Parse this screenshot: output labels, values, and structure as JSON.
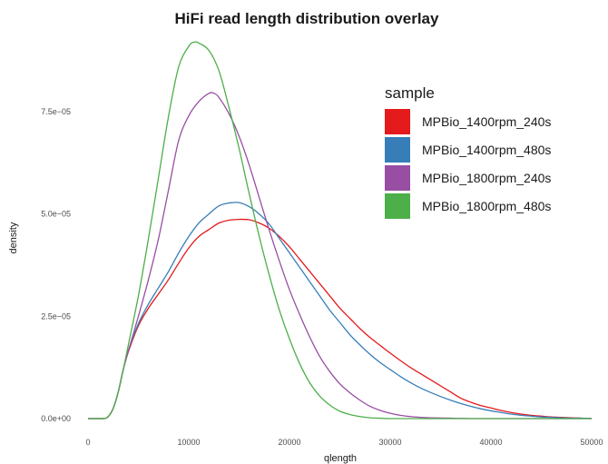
{
  "chart_data": {
    "type": "line",
    "title": "HiFi read length distribution overlay",
    "xlabel": "qlength",
    "ylabel": "density",
    "xlim": [
      0,
      50000
    ],
    "ylim": [
      0,
      9.3e-05
    ],
    "x_ticks": [
      0,
      10000,
      20000,
      30000,
      40000,
      50000
    ],
    "x_tick_labels": [
      "0",
      "10000",
      "20000",
      "30000",
      "40000",
      "50000"
    ],
    "y_ticks": [
      0,
      2.5e-05,
      5e-05,
      7.5e-05
    ],
    "y_tick_labels": [
      "0.0e+00",
      "2.5e−05",
      "5.0e−05",
      "7.5e−05"
    ],
    "grid": false,
    "legend": {
      "title": "sample",
      "position": "top-right"
    },
    "series": [
      {
        "name": "MPBio_1400rpm_240s",
        "color": "#E41A1C",
        "x": [
          0,
          1500,
          2000,
          2500,
          3000,
          3500,
          4000,
          5000,
          6000,
          7000,
          8000,
          9000,
          10000,
          11000,
          12000,
          13000,
          14000,
          15000,
          16000,
          17000,
          18000,
          19000,
          20000,
          21000,
          22000,
          23000,
          24000,
          25000,
          26000,
          27000,
          28000,
          29000,
          30000,
          31000,
          32000,
          33000,
          34000,
          35000,
          36000,
          37000,
          38000,
          39000,
          40000,
          41000,
          42000,
          43000,
          44000,
          45000,
          46000,
          47000,
          48000,
          49000,
          50000
        ],
        "values": [
          0,
          0,
          5e-07,
          2.5e-06,
          6.5e-06,
          1.2e-05,
          1.63e-05,
          2.27e-05,
          2.7e-05,
          3.05e-05,
          3.4e-05,
          3.8e-05,
          4.17e-05,
          4.45e-05,
          4.62e-05,
          4.78e-05,
          4.85e-05,
          4.87e-05,
          4.86e-05,
          4.78e-05,
          4.65e-05,
          4.45e-05,
          4.2e-05,
          3.9e-05,
          3.6e-05,
          3.3e-05,
          3e-05,
          2.7e-05,
          2.45e-05,
          2.2e-05,
          1.98e-05,
          1.79e-05,
          1.6e-05,
          1.42e-05,
          1.25e-05,
          1.1e-05,
          9.5e-06,
          8e-06,
          6.5e-06,
          5e-06,
          4e-06,
          3.2e-06,
          2.6e-06,
          2e-06,
          1.5e-06,
          1.1e-06,
          8e-07,
          6e-07,
          4e-07,
          3e-07,
          2e-07,
          1e-07,
          0
        ]
      },
      {
        "name": "MPBio_1400rpm_480s",
        "color": "#377EB8",
        "x": [
          0,
          1500,
          2000,
          2500,
          3000,
          3500,
          4000,
          5000,
          6000,
          7000,
          8000,
          9000,
          10000,
          11000,
          12000,
          13000,
          14000,
          15000,
          16000,
          17000,
          18000,
          19000,
          20000,
          21000,
          22000,
          23000,
          24000,
          25000,
          26000,
          27000,
          28000,
          29000,
          30000,
          31000,
          32000,
          33000,
          34000,
          35000,
          36000,
          37000,
          38000,
          39000,
          40000,
          41000,
          42000,
          43000,
          44000,
          45000,
          46000,
          47000,
          48000,
          49000,
          50000
        ],
        "values": [
          0,
          0,
          5e-07,
          2.5e-06,
          6.5e-06,
          1.2e-05,
          1.66e-05,
          2.32e-05,
          2.8e-05,
          3.2e-05,
          3.6e-05,
          4.05e-05,
          4.45e-05,
          4.78e-05,
          5e-05,
          5.2e-05,
          5.27e-05,
          5.28e-05,
          5.18e-05,
          5e-05,
          4.75e-05,
          4.4e-05,
          4.05e-05,
          3.7e-05,
          3.35e-05,
          3e-05,
          2.65e-05,
          2.35e-05,
          2.05e-05,
          1.8e-05,
          1.57e-05,
          1.37e-05,
          1.2e-05,
          1.03e-05,
          8.8e-06,
          7.5e-06,
          6.4e-06,
          5.4e-06,
          4.5e-06,
          3.7e-06,
          3e-06,
          2.4e-06,
          1.9e-06,
          1.5e-06,
          1.1e-06,
          8e-07,
          6e-07,
          4e-07,
          3e-07,
          2e-07,
          1e-07,
          1e-07,
          0
        ]
      },
      {
        "name": "MPBio_1800rpm_240s",
        "color": "#984EA3",
        "x": [
          0,
          1500,
          2000,
          2500,
          3000,
          3500,
          4000,
          5000,
          6000,
          7000,
          8000,
          9000,
          10000,
          11000,
          12000,
          12500,
          13000,
          14000,
          15000,
          16000,
          17000,
          18000,
          19000,
          20000,
          21000,
          22000,
          23000,
          24000,
          25000,
          26000,
          27000,
          28000,
          29000,
          30000,
          31000,
          32000,
          33000,
          34000,
          36000,
          38000,
          40000,
          45000,
          50000
        ],
        "values": [
          0,
          0,
          5e-07,
          2.5e-06,
          6.5e-06,
          1.2e-05,
          1.65e-05,
          2.5e-05,
          3.4e-05,
          4.4e-05,
          5.6e-05,
          6.8e-05,
          7.4e-05,
          7.75e-05,
          7.95e-05,
          7.95e-05,
          7.85e-05,
          7.45e-05,
          6.9e-05,
          6.2e-05,
          5.4e-05,
          4.6e-05,
          3.85e-05,
          3.15e-05,
          2.55e-05,
          2e-05,
          1.52e-05,
          1.15e-05,
          8.5e-06,
          6.3e-06,
          4.5e-06,
          3e-06,
          2e-06,
          1.3e-06,
          8e-07,
          5e-07,
          3e-07,
          2e-07,
          1e-07,
          0,
          0,
          0,
          0
        ]
      },
      {
        "name": "MPBio_1800rpm_480s",
        "color": "#4DAF4A",
        "x": [
          0,
          1500,
          2000,
          2500,
          3000,
          3500,
          4000,
          5000,
          6000,
          7000,
          8000,
          9000,
          10000,
          10500,
          11000,
          12000,
          13000,
          14000,
          15000,
          16000,
          17000,
          18000,
          19000,
          20000,
          21000,
          22000,
          23000,
          24000,
          25000,
          26000,
          27000,
          28000,
          29000,
          30000,
          32000,
          35000,
          40000,
          45000,
          50000
        ],
        "values": [
          0,
          0,
          5e-07,
          2.5e-06,
          6.5e-06,
          1.2e-05,
          1.8e-05,
          3e-05,
          4.4e-05,
          5.9e-05,
          7.4e-05,
          8.6e-05,
          9.1e-05,
          9.2e-05,
          9.18e-05,
          9e-05,
          8.5e-05,
          7.6e-05,
          6.6e-05,
          5.5e-05,
          4.45e-05,
          3.5e-05,
          2.65e-05,
          1.95e-05,
          1.35e-05,
          8.8e-06,
          5.5e-06,
          3.3e-06,
          1.8e-06,
          1e-06,
          5e-07,
          2e-07,
          1e-07,
          0,
          0,
          0,
          0,
          0,
          0
        ]
      }
    ]
  }
}
